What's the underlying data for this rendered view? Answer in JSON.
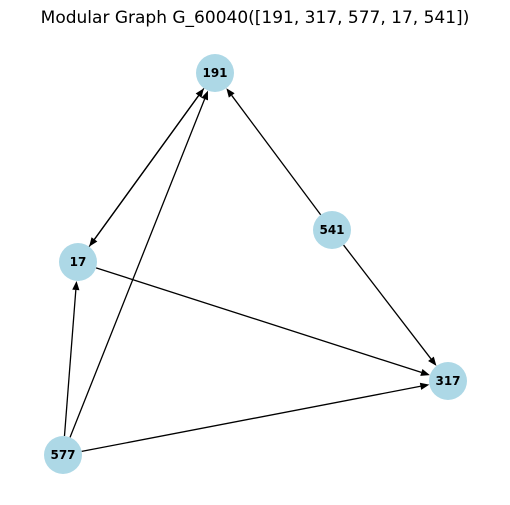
{
  "title": "Modular Graph G_60040([191, 317, 577, 17, 541])",
  "colors": {
    "node_fill": "#add8e6",
    "edge": "#000000",
    "label": "#000000",
    "background": "#ffffff"
  },
  "nodes": [
    {
      "id": "191",
      "label": "191"
    },
    {
      "id": "541",
      "label": "541"
    },
    {
      "id": "17",
      "label": "17"
    },
    {
      "id": "317",
      "label": "317"
    },
    {
      "id": "577",
      "label": "577"
    }
  ],
  "edges": [
    {
      "source": "17",
      "target": "191"
    },
    {
      "source": "191",
      "target": "17"
    },
    {
      "source": "541",
      "target": "191"
    },
    {
      "source": "541",
      "target": "317"
    },
    {
      "source": "17",
      "target": "317"
    },
    {
      "source": "577",
      "target": "17"
    },
    {
      "source": "577",
      "target": "191"
    },
    {
      "source": "577",
      "target": "317"
    }
  ]
}
